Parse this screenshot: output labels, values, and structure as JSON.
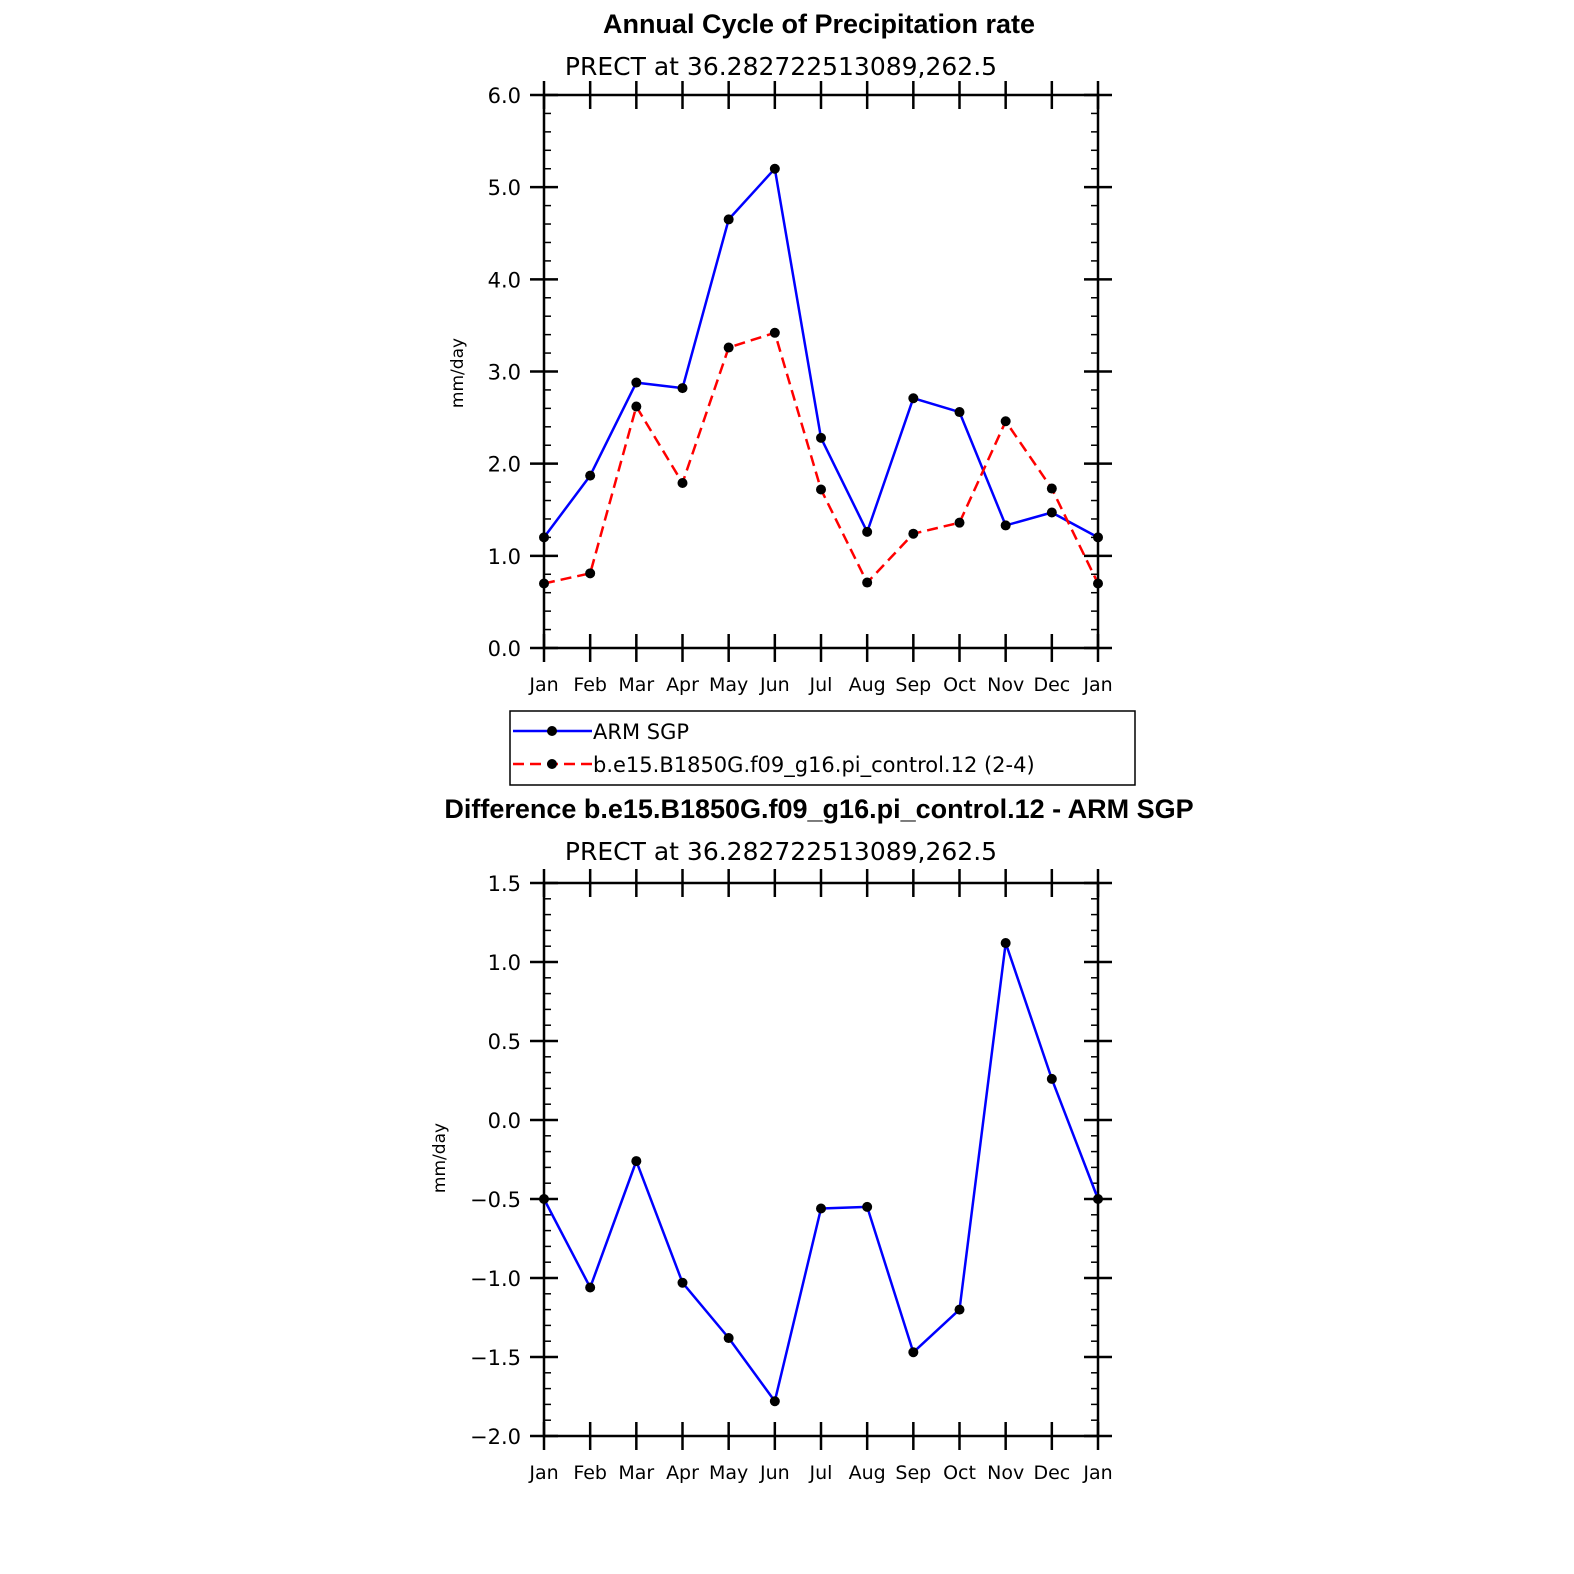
{
  "chart_data": [
    {
      "type": "line",
      "title": "Annual Cycle of Precipitation rate",
      "subtitle": "PRECT at 36.282722513089,262.5",
      "xlabel": "",
      "ylabel": "mm/day",
      "categories": [
        "Jan",
        "Feb",
        "Mar",
        "Apr",
        "May",
        "Jun",
        "Jul",
        "Aug",
        "Sep",
        "Oct",
        "Nov",
        "Dec",
        "Jan"
      ],
      "ylim": [
        0,
        6
      ],
      "ytick_labels": [
        "0.0",
        "1.0",
        "2.0",
        "3.0",
        "4.0",
        "5.0",
        "6.0"
      ],
      "ytick_values": [
        0,
        1,
        2,
        3,
        4,
        5,
        6
      ],
      "grid": false,
      "legend": "bottom",
      "series": [
        {
          "name": "ARM SGP",
          "color": "#0000ff",
          "dash": "solid",
          "marker": "filled-circle",
          "values": [
            1.2,
            1.87,
            2.88,
            2.82,
            4.65,
            5.2,
            2.28,
            1.26,
            2.71,
            2.56,
            1.33,
            1.47,
            1.2
          ]
        },
        {
          "name": "b.e15.B1850G.f09_g16.pi_control.12 (2-4)",
          "color": "#ff0000",
          "dash": "dashed",
          "marker": "filled-circle",
          "values": [
            0.7,
            0.81,
            2.62,
            1.79,
            3.26,
            3.42,
            1.72,
            0.71,
            1.24,
            1.36,
            2.46,
            1.73,
            0.7
          ]
        }
      ]
    },
    {
      "type": "line",
      "title": "Difference b.e15.B1850G.f09_g16.pi_control.12 - ARM SGP",
      "subtitle": "PRECT at 36.282722513089,262.5",
      "xlabel": "",
      "ylabel": "mm/day",
      "categories": [
        "Jan",
        "Feb",
        "Mar",
        "Apr",
        "May",
        "Jun",
        "Jul",
        "Aug",
        "Sep",
        "Oct",
        "Nov",
        "Dec",
        "Jan"
      ],
      "ylim": [
        -2,
        1.5
      ],
      "ytick_labels": [
        "−2.0",
        "−1.5",
        "−1.0",
        "−0.5",
        "0.0",
        "0.5",
        "1.0",
        "1.5"
      ],
      "ytick_values": [
        -2,
        -1.5,
        -1,
        -0.5,
        0,
        0.5,
        1,
        1.5
      ],
      "grid": false,
      "series": [
        {
          "color": "#0000ff",
          "dash": "solid",
          "marker": "filled-circle",
          "values": [
            -0.5,
            -1.06,
            -0.26,
            -1.03,
            -1.38,
            -1.78,
            -0.56,
            -0.55,
            -1.47,
            -1.2,
            1.12,
            0.26,
            -0.5
          ]
        }
      ]
    }
  ]
}
